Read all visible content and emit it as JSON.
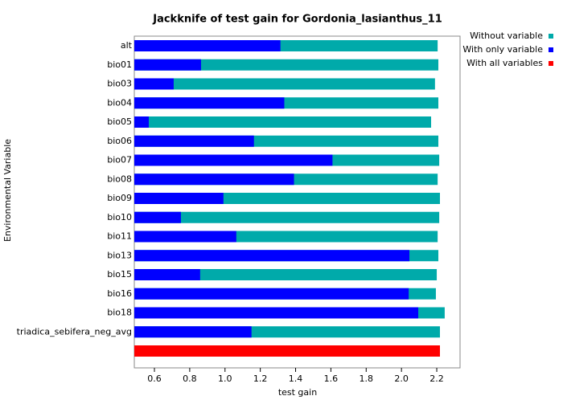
{
  "chart_data": {
    "type": "bar",
    "orientation": "horizontal",
    "title": "Jackknife of test gain for Gordonia_lasianthus_11",
    "xlabel": "test gain",
    "ylabel": "Environmental Variable",
    "categories": [
      "alt",
      "bio01",
      "bio03",
      "bio04",
      "bio05",
      "bio06",
      "bio07",
      "bio08",
      "bio09",
      "bio10",
      "bio11",
      "bio13",
      "bio15",
      "bio16",
      "bio18",
      "triadica_sebifera_neg_avg",
      null
    ],
    "series": [
      {
        "name": "Without variable",
        "color": "#00aaaa",
        "values": [
          2.205,
          2.209,
          2.19,
          2.209,
          2.168,
          2.209,
          2.214,
          2.205,
          2.218,
          2.214,
          2.205,
          2.209,
          2.2,
          2.195,
          2.245,
          2.218,
          null
        ]
      },
      {
        "name": "With only variable",
        "color": "#0000ff",
        "values": [
          1.314,
          0.864,
          0.709,
          1.336,
          0.568,
          1.164,
          1.609,
          1.391,
          0.991,
          0.75,
          1.064,
          2.045,
          0.859,
          2.041,
          2.095,
          1.15,
          null
        ]
      },
      {
        "name": "With all variables",
        "color": "#ff0000",
        "values": [
          null,
          null,
          null,
          null,
          null,
          null,
          null,
          null,
          null,
          null,
          null,
          null,
          null,
          null,
          null,
          null,
          2.218
        ]
      }
    ],
    "xlim": [
      0.486,
      2.332
    ],
    "xticks": [
      0.6,
      0.8,
      {
        "value": 1.0,
        "label": "1.0"
      },
      1.2,
      1.4,
      1.6,
      1.8,
      {
        "value": 2.0,
        "label": "2.0"
      },
      2.2
    ],
    "legend": "top-right"
  }
}
